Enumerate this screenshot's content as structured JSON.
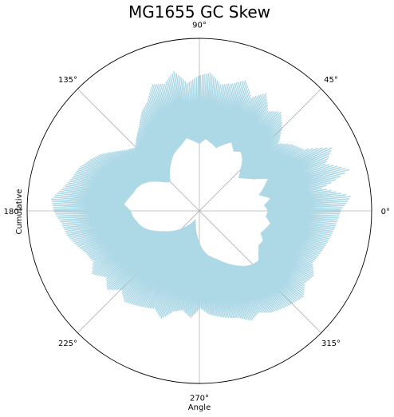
{
  "chart_data": {
    "type": "polar-line",
    "title": "MG1655 GC Skew",
    "xlabel": "Angle",
    "ylabel": "Cumulative",
    "theta_ticks": [
      "0°",
      "45°",
      "90°",
      "135°",
      "180°",
      "225°",
      "270°",
      "315°"
    ],
    "grid": true,
    "series": [
      {
        "color": "#add8e6",
        "theta_deg": [
          0,
          5,
          10,
          15,
          20,
          25,
          30,
          35,
          40,
          45,
          50,
          55,
          60,
          65,
          70,
          75,
          80,
          85,
          90,
          95,
          100,
          105,
          110,
          115,
          120,
          125,
          130,
          135,
          140,
          145,
          150,
          155,
          160,
          165,
          170,
          175,
          180,
          185,
          190,
          195,
          200,
          205,
          210,
          215,
          220,
          225,
          230,
          235,
          240,
          245,
          250,
          255,
          260,
          265,
          270,
          275,
          280,
          285,
          290,
          295,
          300,
          305,
          310,
          315,
          320,
          325,
          330,
          335,
          340,
          345,
          350,
          355
        ],
        "r_inner": [
          0.4,
          0.38,
          0.42,
          0.36,
          0.4,
          0.44,
          0.37,
          0.33,
          0.3,
          0.34,
          0.39,
          0.42,
          0.4,
          0.44,
          0.41,
          0.38,
          0.4,
          0.42,
          0.39,
          0.41,
          0.43,
          0.4,
          0.38,
          0.36,
          0.33,
          0.3,
          0.27,
          0.24,
          0.26,
          0.3,
          0.34,
          0.37,
          0.39,
          0.4,
          0.42,
          0.44,
          0.4,
          0.39,
          0.37,
          0.35,
          0.32,
          0.28,
          0.24,
          0.21,
          0.18,
          0.15,
          0.12,
          0.1,
          0.08,
          0.06,
          0.07,
          0.09,
          0.12,
          0.15,
          0.19,
          0.23,
          0.26,
          0.28,
          0.3,
          0.33,
          0.36,
          0.39,
          0.42,
          0.44,
          0.45,
          0.42,
          0.4,
          0.41,
          0.38,
          0.4,
          0.42,
          0.39
        ],
        "r_outer": [
          0.82,
          0.88,
          0.72,
          0.9,
          0.78,
          0.85,
          0.7,
          0.66,
          0.6,
          0.68,
          0.74,
          0.7,
          0.78,
          0.72,
          0.8,
          0.76,
          0.74,
          0.8,
          0.78,
          0.74,
          0.82,
          0.76,
          0.78,
          0.7,
          0.66,
          0.6,
          0.56,
          0.52,
          0.55,
          0.6,
          0.66,
          0.7,
          0.74,
          0.76,
          0.8,
          0.86,
          0.84,
          0.8,
          0.78,
          0.74,
          0.7,
          0.68,
          0.72,
          0.66,
          0.7,
          0.64,
          0.68,
          0.66,
          0.64,
          0.62,
          0.66,
          0.6,
          0.58,
          0.62,
          0.56,
          0.6,
          0.62,
          0.64,
          0.66,
          0.7,
          0.68,
          0.72,
          0.74,
          0.76,
          0.78,
          0.74,
          0.76,
          0.72,
          0.74,
          0.76,
          0.78,
          0.8
        ]
      }
    ]
  }
}
